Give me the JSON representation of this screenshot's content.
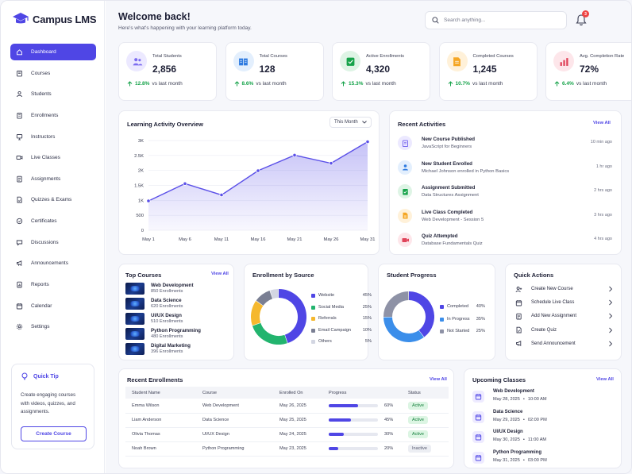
{
  "brand": {
    "name": "Campus LMS"
  },
  "sidebar": {
    "items": [
      {
        "label": "Dashboard",
        "icon": "home-icon"
      },
      {
        "label": "Courses",
        "icon": "book-icon"
      },
      {
        "label": "Students",
        "icon": "user-icon"
      },
      {
        "label": "Enrollments",
        "icon": "clipboard-icon"
      },
      {
        "label": "Instructors",
        "icon": "instructor-icon"
      },
      {
        "label": "Live Classes",
        "icon": "video-icon"
      },
      {
        "label": "Assignments",
        "icon": "assignment-icon"
      },
      {
        "label": "Quizzes & Exams",
        "icon": "quiz-icon"
      },
      {
        "label": "Certificates",
        "icon": "certificate-icon"
      },
      {
        "label": "Discussions",
        "icon": "chat-icon"
      },
      {
        "label": "Announcements",
        "icon": "megaphone-icon"
      },
      {
        "label": "Reports",
        "icon": "report-icon"
      },
      {
        "label": "Calendar",
        "icon": "calendar-icon"
      },
      {
        "label": "Settings",
        "icon": "gear-icon"
      }
    ],
    "active": "Dashboard"
  },
  "tip": {
    "title": "Quick Tip",
    "text": "Create engaging courses with videos, quizzes, and assignments.",
    "button": "Create Course"
  },
  "header": {
    "title": "Welcome back!",
    "subtitle": "Here's what's happening with your learning platform today.",
    "search_placeholder": "Search anything...",
    "notifications": "3"
  },
  "stats": [
    {
      "label": "Total Students",
      "value": "2,856",
      "change": "12.8%",
      "suffix": "vs last month",
      "color": "#7c6cf0",
      "bg": "#ece9ff"
    },
    {
      "label": "Total Courses",
      "value": "128",
      "change": "8.6%",
      "suffix": "vs last month",
      "color": "#2f7be0",
      "bg": "#e3effd"
    },
    {
      "label": "Active Enrollments",
      "value": "4,320",
      "change": "15.3%",
      "suffix": "vs last month",
      "color": "#16a34a",
      "bg": "#def4e5"
    },
    {
      "label": "Completed Courses",
      "value": "1,245",
      "change": "10.7%",
      "suffix": "vs last month",
      "color": "#f5a623",
      "bg": "#fff1d9"
    },
    {
      "label": "Avg. Completion Rate",
      "value": "72%",
      "change": "6.4%",
      "suffix": "vs last month",
      "color": "#e0445a",
      "bg": "#fde6ea"
    }
  ],
  "activity_chart": {
    "title": "Learning Activity Overview",
    "range": "This Month"
  },
  "chart_data": {
    "type": "area",
    "title": "Learning Activity Overview",
    "x": [
      "May 1",
      "May 6",
      "May 11",
      "May 16",
      "May 21",
      "May 26",
      "May 31"
    ],
    "series": [
      {
        "values": [
          980,
          1560,
          1180,
          1990,
          2510,
          2240,
          2960
        ]
      }
    ],
    "ylim": [
      0,
      3000
    ],
    "yticks": [
      "0",
      "500",
      "1K",
      "1.5K",
      "2K",
      "2.5K",
      "3K"
    ],
    "grid": true,
    "color": "#5b50e8"
  },
  "recent": {
    "title": "Recent Activities",
    "view_all": "View All",
    "items": [
      {
        "title": "New Course Published",
        "sub": "JavaScript for Beginners",
        "time": "10 min ago",
        "color": "#7c6cf0",
        "bg": "#ece9ff"
      },
      {
        "title": "New Student Enrolled",
        "sub": "Michael Johnson enrolled in Python Basics",
        "time": "1 hr ago",
        "color": "#2f7be0",
        "bg": "#e3effd"
      },
      {
        "title": "Assignment Submitted",
        "sub": "Data Structures Assignment",
        "time": "2 hrs ago",
        "color": "#16a34a",
        "bg": "#def4e5"
      },
      {
        "title": "Live Class Completed",
        "sub": "Web Development - Session 5",
        "time": "3 hrs ago",
        "color": "#f5a623",
        "bg": "#fff1d9"
      },
      {
        "title": "Quiz Attempted",
        "sub": "Database Fundamentals Quiz",
        "time": "4 hrs ago",
        "color": "#e0445a",
        "bg": "#fde6ea"
      }
    ]
  },
  "top_courses": {
    "title": "Top Courses",
    "view_all": "View All",
    "items": [
      {
        "name": "Web Development",
        "enroll": "850 Enrollments"
      },
      {
        "name": "Data Science",
        "enroll": "620 Enrollments"
      },
      {
        "name": "UI/UX Design",
        "enroll": "510 Enrollments"
      },
      {
        "name": "Python Programming",
        "enroll": "480 Enrollments"
      },
      {
        "name": "Digital Marketing",
        "enroll": "396 Enrollments"
      }
    ]
  },
  "source": {
    "title": "Enrollment by Source",
    "items": [
      {
        "label": "Website",
        "pct": "45%",
        "value": 45,
        "color": "#4f46e5"
      },
      {
        "label": "Social Media",
        "pct": "25%",
        "value": 25,
        "color": "#22b46e"
      },
      {
        "label": "Referrals",
        "pct": "15%",
        "value": 15,
        "color": "#f5b82e"
      },
      {
        "label": "Email Campaign",
        "pct": "10%",
        "value": 10,
        "color": "#7a7f93"
      },
      {
        "label": "Others",
        "pct": "5%",
        "value": 5,
        "color": "#d3d6e2"
      }
    ]
  },
  "progress": {
    "title": "Student Progress",
    "items": [
      {
        "label": "Completed",
        "pct": "40%",
        "value": 40,
        "color": "#4f46e5"
      },
      {
        "label": "In Progress",
        "pct": "35%",
        "value": 35,
        "color": "#3b8eea"
      },
      {
        "label": "Not Started",
        "pct": "25%",
        "value": 25,
        "color": "#8e92a6"
      }
    ]
  },
  "quick_actions": {
    "title": "Quick Actions",
    "items": [
      {
        "label": "Create New Course",
        "icon": "user-plus-icon"
      },
      {
        "label": "Schedule Live Class",
        "icon": "calendar-icon"
      },
      {
        "label": "Add New Assignment",
        "icon": "assignment-icon"
      },
      {
        "label": "Create Quiz",
        "icon": "quiz-icon"
      },
      {
        "label": "Send Announcement",
        "icon": "megaphone-icon"
      }
    ]
  },
  "enrollments": {
    "title": "Recent Enrollments",
    "view_all": "View All",
    "columns": [
      "Student Name",
      "Course",
      "Enrolled On",
      "Progress",
      "Status"
    ],
    "rows": [
      {
        "name": "Emma Wilson",
        "course": "Web Development",
        "date": "May 26, 2025",
        "progress": 60,
        "pct": "60%",
        "status": "Active"
      },
      {
        "name": "Liam Anderson",
        "course": "Data Science",
        "date": "May 25, 2025",
        "progress": 45,
        "pct": "45%",
        "status": "Active"
      },
      {
        "name": "Olivia Thomas",
        "course": "UI/UX Design",
        "date": "May 24, 2025",
        "progress": 30,
        "pct": "30%",
        "status": "Active"
      },
      {
        "name": "Noah Brown",
        "course": "Python Programming",
        "date": "May 23, 2025",
        "progress": 20,
        "pct": "20%",
        "status": "Inactive"
      }
    ]
  },
  "upcoming": {
    "title": "Upcoming Classes",
    "view_all": "View All",
    "items": [
      {
        "name": "Web Development",
        "date": "May 28, 2025",
        "time": "10:00 AM"
      },
      {
        "name": "Data Science",
        "date": "May 29, 2025",
        "time": "02:00 PM"
      },
      {
        "name": "UI/UX Design",
        "date": "May 30, 2025",
        "time": "11:00 AM"
      },
      {
        "name": "Python Programming",
        "date": "May 31, 2025",
        "time": "03:00 PM"
      }
    ],
    "sep": "•"
  }
}
